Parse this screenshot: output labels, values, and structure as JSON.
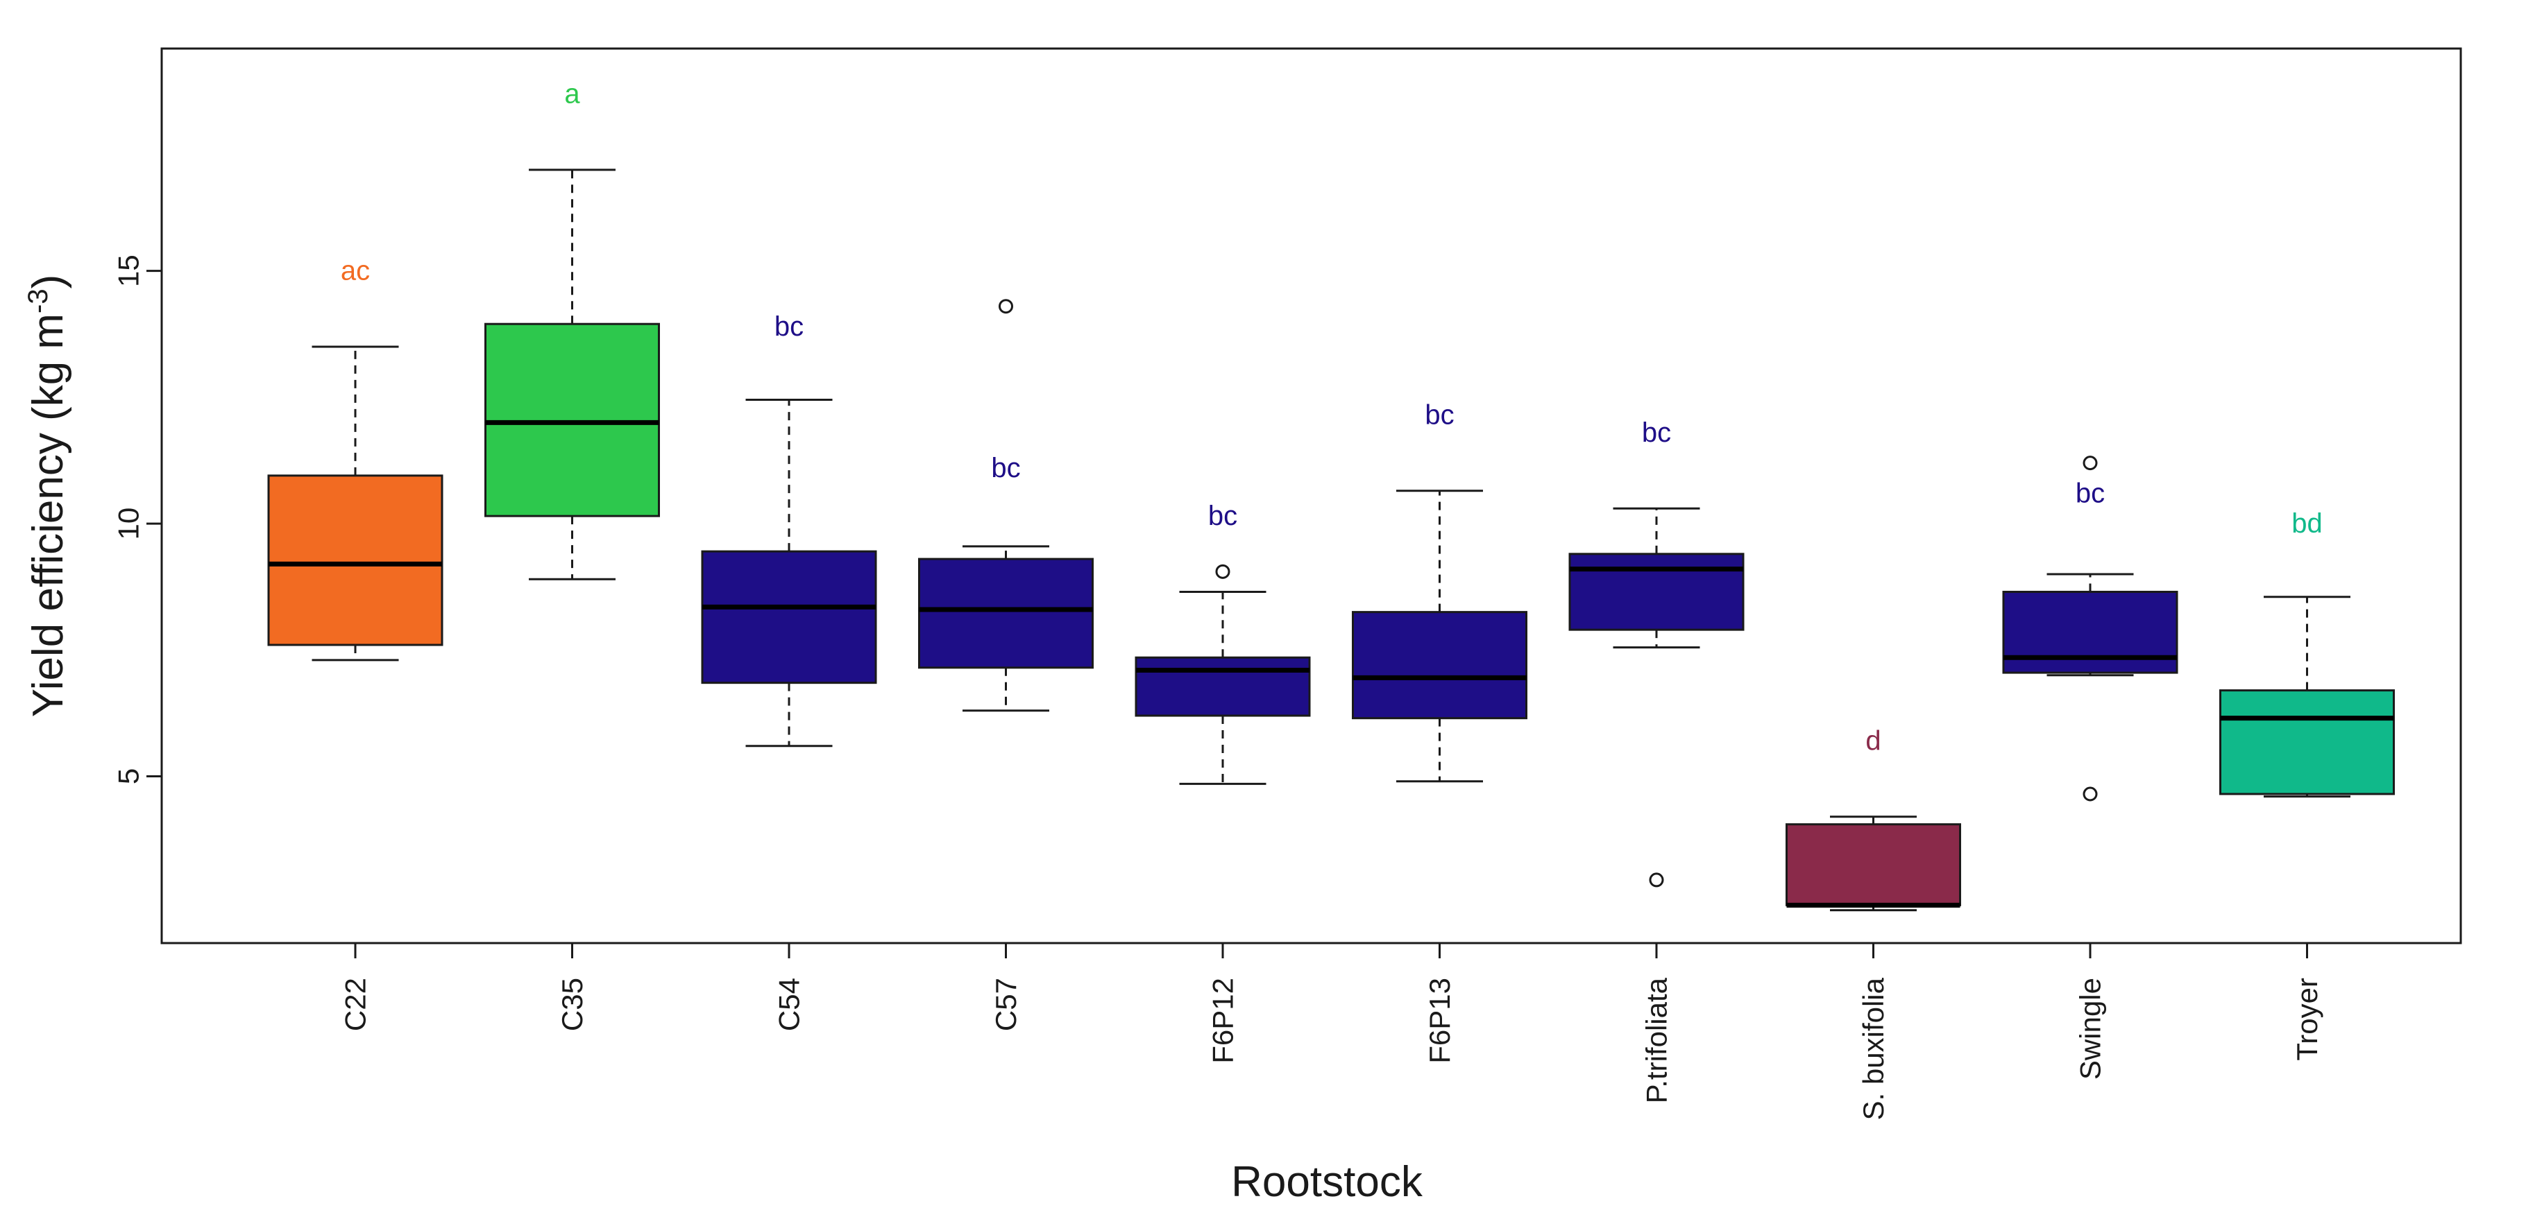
{
  "chart_data": {
    "type": "box",
    "title": "",
    "xlabel": "Rootstock",
    "ylabel_main": "Yield efficiency (kg m",
    "ylabel_sup": "-3",
    "ylabel_close": ")",
    "ylim": [
      1.7,
      19.4
    ],
    "yticks": [
      5,
      10,
      15
    ],
    "grid": false,
    "categories": [
      {
        "name": "C22",
        "letter": "ac",
        "letter_y": 15.0,
        "color": "#F26B22",
        "letter_color": "#F26B22",
        "whisker_low": 7.3,
        "q1": 7.6,
        "median": 9.2,
        "q3": 10.95,
        "whisker_high": 13.5,
        "outliers": []
      },
      {
        "name": "C35",
        "letter": "a",
        "letter_y": 18.5,
        "color": "#2DC84D",
        "letter_color": "#2DC84D",
        "whisker_low": 8.9,
        "q1": 10.15,
        "median": 12.0,
        "q3": 13.95,
        "whisker_high": 17.0,
        "outliers": []
      },
      {
        "name": "C54",
        "letter": "bc",
        "letter_y": 13.9,
        "color": "#1E0E87",
        "letter_color": "#1E0E87",
        "whisker_low": 5.6,
        "q1": 6.85,
        "median": 8.35,
        "q3": 9.45,
        "whisker_high": 12.45,
        "outliers": []
      },
      {
        "name": "C57",
        "letter": "bc",
        "letter_y": 11.1,
        "color": "#1E0E87",
        "letter_color": "#1E0E87",
        "whisker_low": 6.3,
        "q1": 7.15,
        "median": 8.3,
        "q3": 9.3,
        "whisker_high": 9.55,
        "outliers": [
          14.3
        ]
      },
      {
        "name": "F6P12",
        "letter": "bc",
        "letter_y": 10.15,
        "color": "#1E0E87",
        "letter_color": "#1E0E87",
        "whisker_low": 4.85,
        "q1": 6.2,
        "median": 7.1,
        "q3": 7.35,
        "whisker_high": 8.65,
        "outliers": [
          9.05
        ]
      },
      {
        "name": "F6P13",
        "letter": "bc",
        "letter_y": 12.15,
        "color": "#1E0E87",
        "letter_color": "#1E0E87",
        "whisker_low": 4.9,
        "q1": 6.15,
        "median": 6.95,
        "q3": 8.25,
        "whisker_high": 10.65,
        "outliers": []
      },
      {
        "name": "P.trifoliata",
        "letter": "bc",
        "letter_y": 11.8,
        "color": "#1E0E87",
        "letter_color": "#1E0E87",
        "whisker_low": 7.55,
        "q1": 7.9,
        "median": 9.1,
        "q3": 9.4,
        "whisker_high": 10.3,
        "outliers": [
          2.95
        ]
      },
      {
        "name": "S. buxifolia",
        "letter": "d",
        "letter_y": 5.7,
        "color": "#8A2A4A",
        "letter_color": "#8A2A4A",
        "whisker_low": 2.35,
        "q1": 2.45,
        "median": 2.45,
        "q3": 4.05,
        "whisker_high": 4.2,
        "outliers": []
      },
      {
        "name": "Swingle",
        "letter": "bc",
        "letter_y": 10.6,
        "color": "#1E0E87",
        "letter_color": "#1E0E87",
        "whisker_low": 7.0,
        "q1": 7.05,
        "median": 7.35,
        "q3": 8.65,
        "whisker_high": 9.0,
        "outliers": [
          11.2,
          4.65
        ]
      },
      {
        "name": "Troyer",
        "letter": "bd",
        "letter_y": 10.0,
        "color": "#10B98A",
        "letter_color": "#10B98A",
        "whisker_low": 4.6,
        "q1": 4.65,
        "median": 6.15,
        "q3": 6.7,
        "whisker_high": 8.55,
        "outliers": []
      }
    ]
  }
}
